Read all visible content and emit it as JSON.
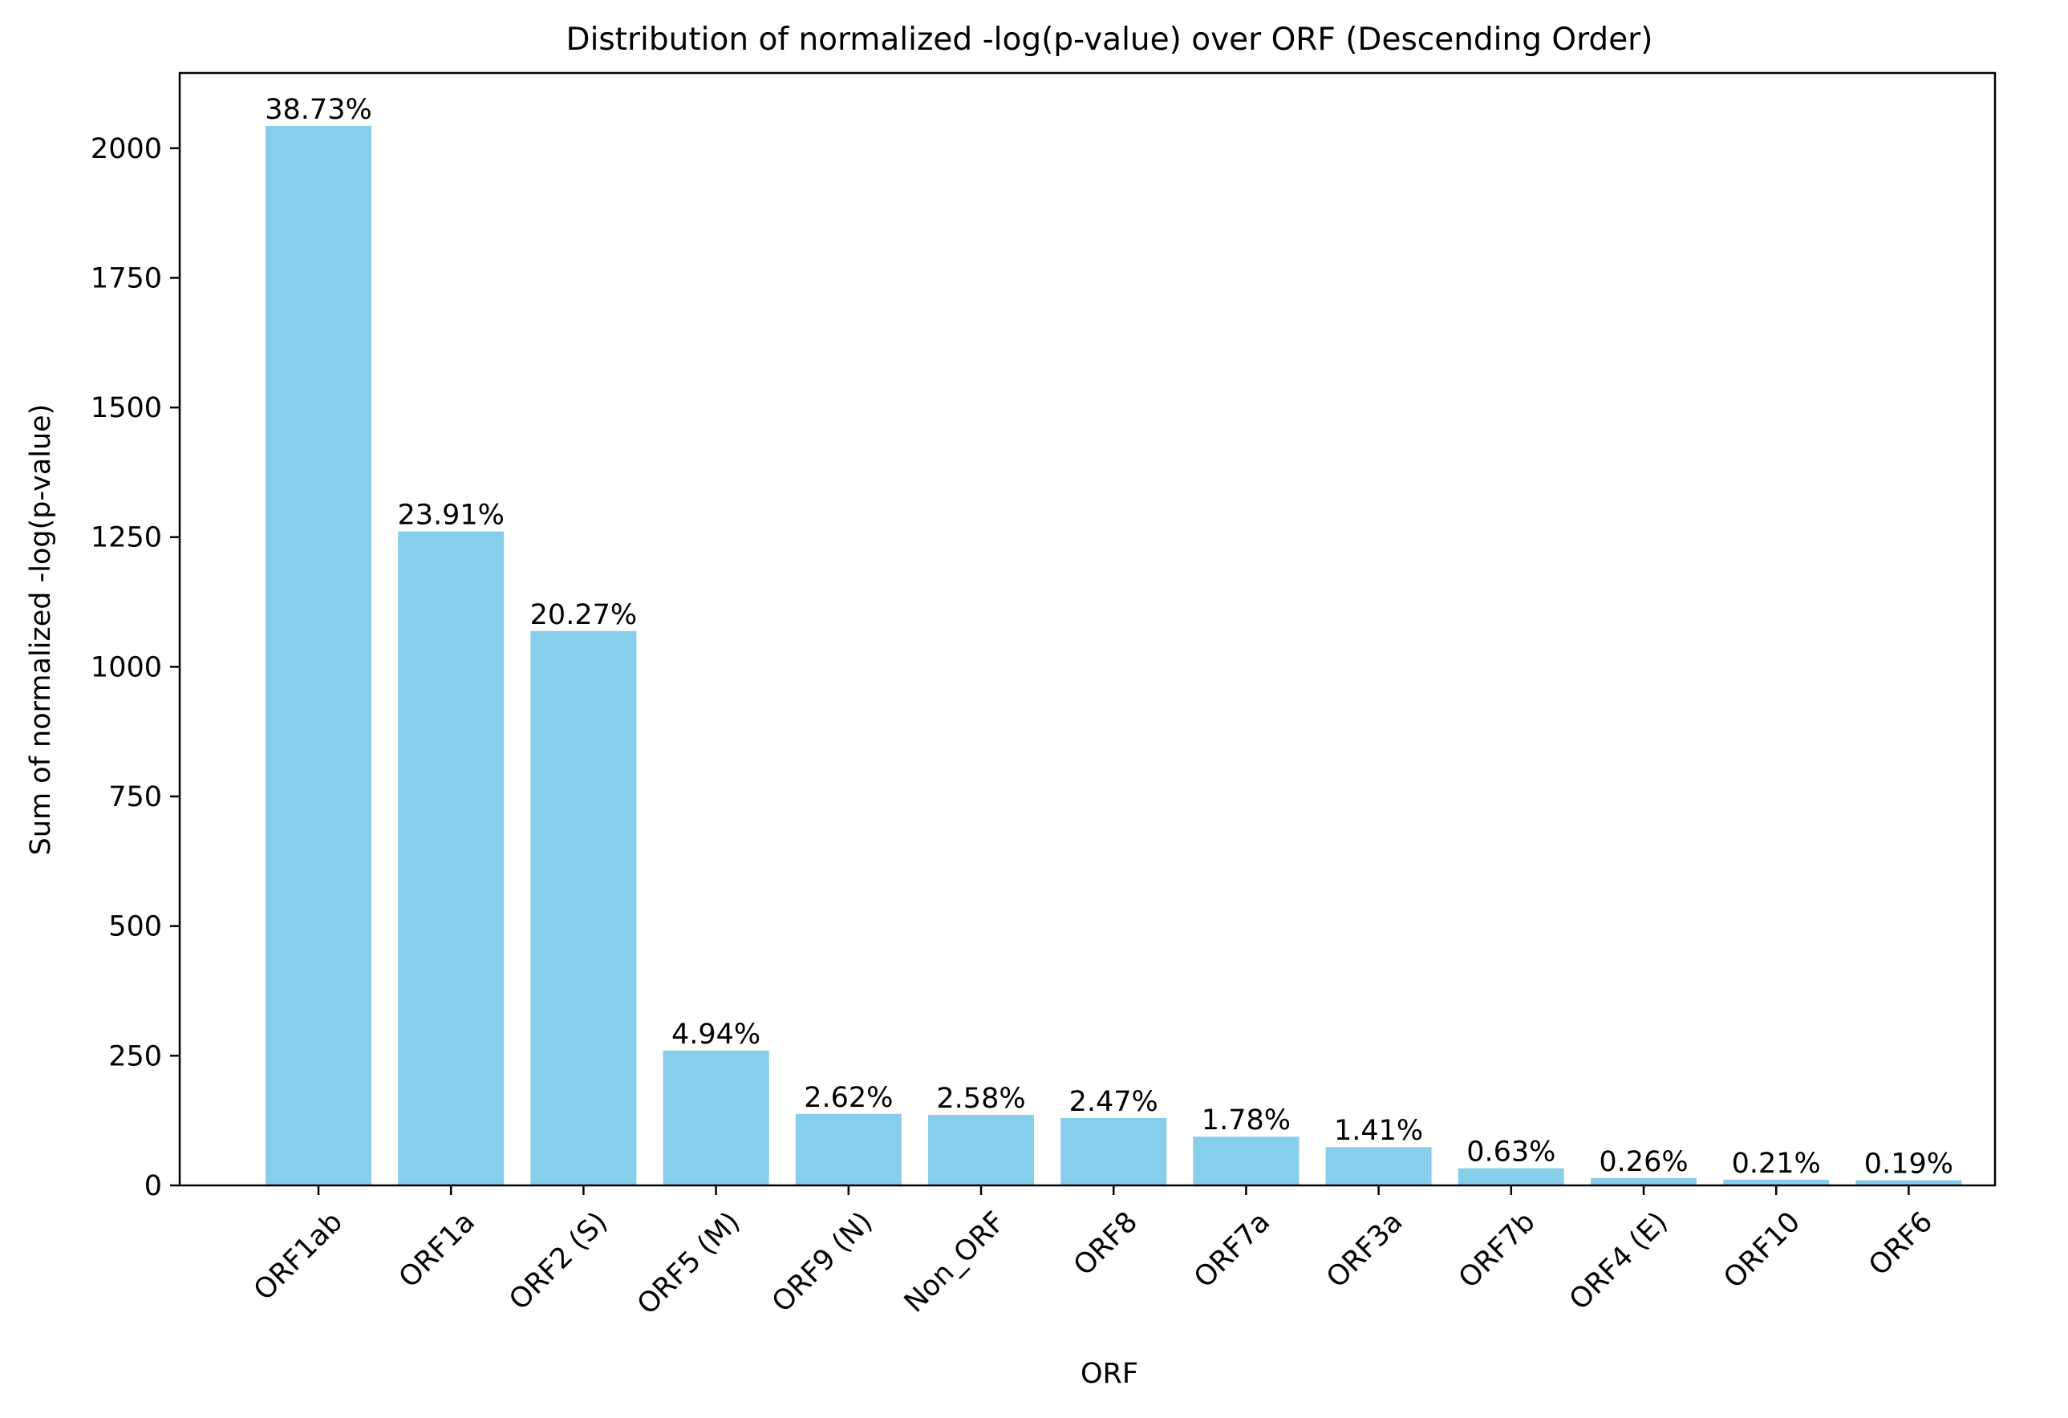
{
  "chart_data": {
    "type": "bar",
    "title": "Distribution of normalized -log(p-value) over ORF (Descending Order)",
    "xlabel": "ORF",
    "ylabel": "Sum of normalized -log(p-value)",
    "categories": [
      "ORF1ab",
      "ORF1a",
      "ORF2 (S)",
      "ORF5 (M)",
      "ORF9 (N)",
      "Non_ORF",
      "ORF8",
      "ORF7a",
      "ORF3a",
      "ORF7b",
      "ORF4 (E)",
      "ORF10",
      "ORF6"
    ],
    "values": [
      2043,
      1261,
      1069,
      260,
      138,
      136,
      130,
      94,
      74,
      33,
      14,
      11,
      10
    ],
    "labels": [
      "38.73%",
      "23.91%",
      "20.27%",
      "4.94%",
      "2.62%",
      "2.58%",
      "2.47%",
      "1.78%",
      "1.41%",
      "0.63%",
      "0.26%",
      "0.21%",
      "0.19%"
    ],
    "ylim": [
      0,
      2145
    ],
    "yticks": [
      0,
      250,
      500,
      750,
      1000,
      1250,
      1500,
      1750,
      2000
    ],
    "grid": false,
    "colors": {
      "bar": "#87ceeb",
      "axis": "#000000",
      "text": "#000000"
    }
  }
}
